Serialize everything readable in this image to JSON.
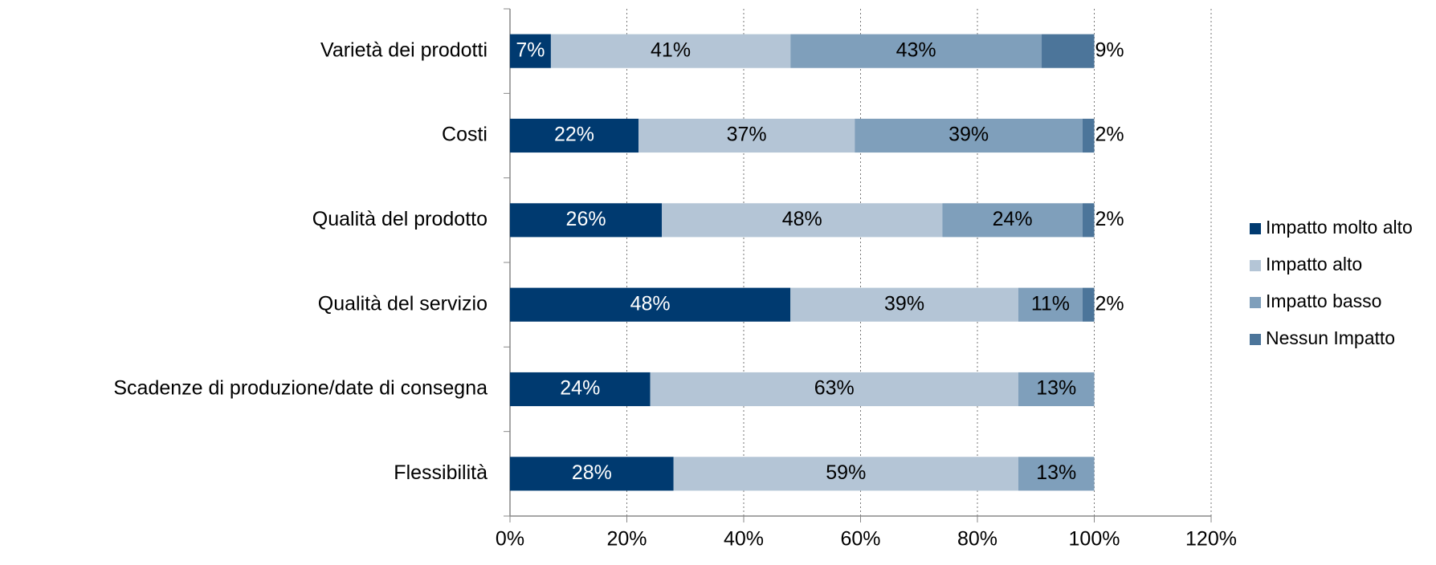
{
  "chart_data": {
    "type": "stacked_bar_horizontal",
    "categories": [
      "Varietà dei prodotti",
      "Costi",
      "Qualità del prodotto",
      "Qualità del servizio",
      "Scadenze di produzione/date di consegna",
      "Flessibilità"
    ],
    "series": [
      {
        "name": "Impatto molto alto",
        "color": "#003a70",
        "values": [
          7,
          22,
          26,
          48,
          24,
          28
        ],
        "value_labels": [
          "7%",
          "22%",
          "26%",
          "48%",
          "24%",
          "28%"
        ]
      },
      {
        "name": "Impatto alto",
        "color": "#b4c5d6",
        "values": [
          41,
          37,
          48,
          39,
          63,
          59
        ],
        "value_labels": [
          "41%",
          "37%",
          "48%",
          "39%",
          "63%",
          "59%"
        ]
      },
      {
        "name": "Impatto basso",
        "color": "#7f9fbb",
        "values": [
          43,
          39,
          24,
          11,
          13,
          13
        ],
        "value_labels": [
          "43%",
          "39%",
          "24%",
          "11%",
          "13%",
          "13%"
        ]
      },
      {
        "name": "Nessun Impatto",
        "color": "#4c759a",
        "values": [
          9,
          2,
          2,
          2,
          null,
          null
        ],
        "value_labels": [
          "9%",
          "2%",
          "2%",
          "2%",
          null,
          null
        ]
      }
    ],
    "xlim": [
      0,
      120
    ],
    "xticks": [
      {
        "value": 0,
        "label": "0%"
      },
      {
        "value": 20,
        "label": "20%"
      },
      {
        "value": 40,
        "label": "40%"
      },
      {
        "value": 60,
        "label": "60%"
      },
      {
        "value": 80,
        "label": "80%"
      },
      {
        "value": 100,
        "label": "100%"
      },
      {
        "value": 120,
        "label": "120%"
      }
    ],
    "grid": true,
    "legend": "right"
  }
}
